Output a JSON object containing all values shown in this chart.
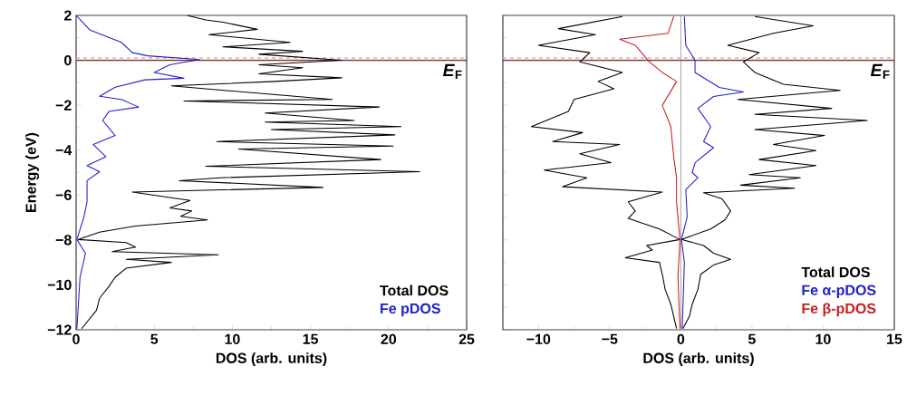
{
  "chart_data": [
    {
      "type": "line",
      "xlabel": "DOS (arb. units)",
      "ylabel": "Energy (eV)",
      "xlim": [
        0,
        25
      ],
      "ylim": [
        -12,
        2
      ],
      "xticks": [
        0,
        5,
        10,
        15,
        20,
        25
      ],
      "yticks": [
        {
          "value": -12,
          "label": "−12"
        },
        {
          "value": -10,
          "label": "−10"
        },
        {
          "value": -8,
          "label": "−8"
        },
        {
          "value": -6,
          "label": "−6"
        },
        {
          "value": -4,
          "label": "−4"
        },
        {
          "value": -2,
          "label": "−2"
        },
        0,
        2
      ],
      "legend": "bottom right",
      "line_style": "solid",
      "ref_lines": [
        {
          "axis": "y",
          "value": 0,
          "color": "#7b2d2d",
          "label": "*E*$_{F}$"
        },
        {
          "axis": "y",
          "value": 0.1,
          "color": "#e8a8a8",
          "line_style": "dashed"
        }
      ],
      "series": [
        {
          "name": "Total DOS",
          "color": "#000000",
          "x": [
            7.1,
            8.3,
            9.4,
            11.6,
            8.5,
            13.7,
            9.4,
            14.5,
            11.7,
            17,
            11.7,
            14.5,
            11.7,
            17,
            12.7,
            6.1,
            16.4,
            6.9,
            19.4,
            12.1,
            17.8,
            12.1,
            20.8,
            12.5,
            20.4,
            9.0,
            20.3,
            10.4,
            19.5,
            8.3,
            22,
            9.2,
            6.6,
            15.8,
            3.6,
            7.3,
            6,
            7.4,
            6.7,
            8.4,
            3.8,
            1.5,
            0.15,
            3.2,
            3.8,
            2.3,
            9.1,
            3.2,
            6.1,
            3.2,
            2.5,
            2.1,
            1.5,
            1.3,
            0.35
          ],
          "values": [
            2,
            1.8,
            1.7,
            1.38,
            1.14,
            0.8,
            0.6,
            0.4,
            0.27,
            0,
            -0.2,
            -0.33,
            -0.6,
            -0.78,
            -0.94,
            -1.14,
            -1.74,
            -1.81,
            -2.08,
            -2.35,
            -2.68,
            -2.75,
            -2.95,
            -3.08,
            -3.32,
            -3.62,
            -3.82,
            -3.95,
            -4.42,
            -4.72,
            -4.96,
            -5.23,
            -5.36,
            -5.66,
            -5.87,
            -6.24,
            -6.57,
            -6.71,
            -6.95,
            -7.11,
            -7.38,
            -7.65,
            -7.98,
            -8.12,
            -8.32,
            -8.52,
            -8.66,
            -8.86,
            -9.0,
            -9.26,
            -9.66,
            -10.07,
            -10.6,
            -11.14,
            -11.95
          ]
        },
        {
          "name": "Fe pDOS",
          "color": "#2020d0",
          "x": [
            0,
            0.9,
            2.9,
            3.6,
            4.6,
            7.9,
            6.0,
            5.0,
            6.9,
            4.4,
            2.5,
            1.5,
            2.9,
            4.0,
            2.1,
            1.7,
            2.5,
            1.1,
            1.9,
            0.7,
            1.5,
            0.7,
            0.7,
            0.5,
            0.05,
            0.6,
            0.25,
            0.05
          ],
          "values": [
            2,
            1.34,
            0.8,
            0.34,
            0.2,
            0.03,
            -0.2,
            -0.54,
            -0.8,
            -0.87,
            -1.2,
            -1.6,
            -1.74,
            -2.08,
            -2.28,
            -2.68,
            -3.35,
            -3.75,
            -4.29,
            -4.69,
            -4.96,
            -5.36,
            -6.3,
            -6.97,
            -7.98,
            -8.59,
            -9.66,
            -11.95
          ]
        }
      ]
    },
    {
      "type": "line",
      "xlabel": "DOS (arb. units)",
      "xlim": [
        -12.5,
        15
      ],
      "ylim": [
        -12,
        2
      ],
      "xticks": [
        {
          "value": -10,
          "label": "−10"
        },
        {
          "value": -5,
          "label": "−5"
        },
        0,
        5,
        10,
        15
      ],
      "yticks": [
        {
          "value": -12,
          "label": null
        },
        {
          "value": -10,
          "label": null
        },
        {
          "value": -8,
          "label": null
        },
        {
          "value": -6,
          "label": null
        },
        {
          "value": -4,
          "label": null
        },
        {
          "value": -2,
          "label": null
        },
        {
          "value": 0,
          "label": null
        },
        {
          "value": 2,
          "label": null
        }
      ],
      "tick_labels": "x",
      "legend": "bottom right",
      "line_style": "solid",
      "ref_lines": [
        {
          "axis": "y",
          "value": 0,
          "color": "#7b2d2d",
          "label": "*E*$_{F}$"
        },
        {
          "axis": "y",
          "value": 0.1,
          "color": "#e8a8a8",
          "line_style": "dashed"
        },
        {
          "axis": "x",
          "value": 0,
          "color": "#808080"
        }
      ],
      "series": [
        {
          "name": "Total DOS",
          "color": "#000000",
          "x": [
            5.2,
            9.3,
            6.5,
            3.3,
            5.5,
            4.4,
            5.2,
            7.2,
            11.2,
            4.0,
            10.6,
            5.2,
            13.1,
            5.2,
            10.1,
            6.5,
            9.5,
            5.5,
            9.5,
            4.8,
            8.4,
            4.2,
            8.0,
            1.6,
            2.9,
            3.5,
            3.1,
            2.1,
            0.05,
            1.6,
            2.3,
            3.5,
            2.3,
            1.4,
            1.2,
            0.8,
            0.6,
            0.15
          ],
          "values": [
            1.95,
            1.54,
            1.2,
            0.67,
            0.34,
            -0.07,
            -0.54,
            -1.07,
            -1.34,
            -1.74,
            -2.14,
            -2.41,
            -2.68,
            -3.08,
            -3.35,
            -3.75,
            -4.02,
            -4.42,
            -4.69,
            -5.09,
            -5.23,
            -5.56,
            -5.7,
            -5.9,
            -6.17,
            -6.71,
            -7.11,
            -7.51,
            -7.98,
            -8.25,
            -8.59,
            -8.86,
            -9.12,
            -9.53,
            -10.2,
            -10.87,
            -11.41,
            -11.95
          ]
        },
        {
          "color": "#000000",
          "x": [
            -4.1,
            -8.6,
            -6.0,
            -10.0,
            -6.4,
            -7.1,
            -4.1,
            -5.8,
            -4.7,
            -7.5,
            -7.9,
            -10.5,
            -6.9,
            -9.0,
            -4.3,
            -7.1,
            -4.9,
            -9.6,
            -6.6,
            -8.3,
            -1.3,
            -3.7,
            -3.2,
            -3.7,
            -1.5,
            -0.06,
            -2.4,
            -2.0,
            -3.9,
            -1.5,
            -1.3,
            -1.1,
            -0.7,
            -0.3
          ],
          "values": [
            1.95,
            1.41,
            1.14,
            0.67,
            0.34,
            -0.07,
            -0.54,
            -0.94,
            -1.27,
            -1.74,
            -2.28,
            -2.95,
            -3.22,
            -3.62,
            -3.75,
            -4.16,
            -4.56,
            -4.89,
            -5.23,
            -5.63,
            -5.87,
            -6.3,
            -6.71,
            -7.04,
            -7.51,
            -7.98,
            -8.25,
            -8.45,
            -8.79,
            -9.0,
            -9.53,
            -10.2,
            -10.87,
            -11.95
          ]
        },
        {
          "name": "Fe α-pDOS",
          "color": "#2020d0",
          "x": [
            0.25,
            0.35,
            1.0,
            1.0,
            2.7,
            4.4,
            2.3,
            1.2,
            2.1,
            1.6,
            2.3,
            1.0,
            0.8,
            1.2,
            0.35,
            0.45,
            0.05,
            0.25,
            0.1
          ],
          "values": [
            1.95,
            0.67,
            0,
            -0.54,
            -1.21,
            -1.41,
            -1.61,
            -2.14,
            -2.95,
            -3.62,
            -3.89,
            -4.56,
            -5.0,
            -5.23,
            -5.76,
            -6.97,
            -7.98,
            -9.0,
            -11.95
          ]
        },
        {
          "name": "Fe β-pDOS",
          "color": "#c82020",
          "x": [
            -0.5,
            -0.9,
            -4.3,
            -3.2,
            -2.2,
            -1.3,
            -0.3,
            -1.3,
            -0.7,
            -0.5,
            -0.3,
            -0.3,
            -0.06,
            -0.2,
            -0.06
          ],
          "values": [
            1.95,
            1.2,
            0.94,
            0.67,
            -0.07,
            -0.54,
            -0.94,
            -2.01,
            -2.95,
            -4.29,
            -5.23,
            -6.3,
            -7.98,
            -9.66,
            -11.95
          ]
        }
      ]
    }
  ]
}
